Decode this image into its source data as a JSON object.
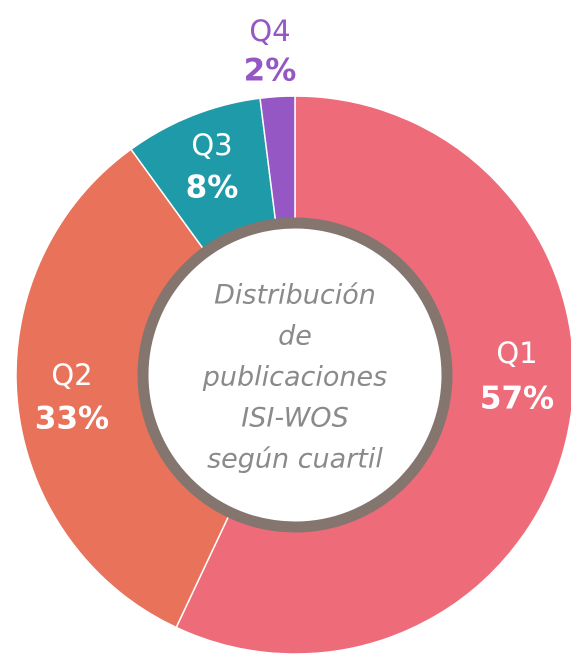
{
  "chart_data": {
    "type": "donut",
    "categories": [
      "Q1",
      "Q2",
      "Q3",
      "Q4"
    ],
    "values": [
      57,
      33,
      8,
      2
    ],
    "value_labels": [
      "57%",
      "33%",
      "8%",
      "2%"
    ],
    "colors": [
      "#ee6b79",
      "#e8735a",
      "#1f9aa8",
      "#9457c4"
    ],
    "center_text": [
      "Distribución",
      "de",
      "publicaciones",
      "ISI-WOS",
      "según cuartil"
    ]
  }
}
